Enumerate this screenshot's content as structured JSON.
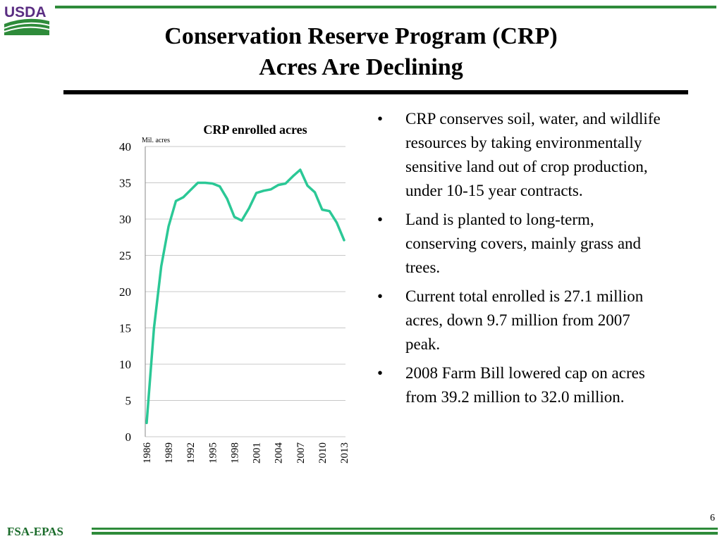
{
  "logo": {
    "text": "USDA",
    "text_color": "#5a2d82",
    "field_color": "#2e8b3a"
  },
  "title": {
    "line1": "Conservation Reserve Program (CRP)",
    "line2": "Acres Are Declining"
  },
  "bullets": [
    "CRP conserves soil, water, and wildlife resources by taking environmentally sensitive land out of crop production, under 10-15 year contracts.",
    "Land is planted to long-term, conserving covers, mainly grass and trees.",
    "Current total enrolled is 27.1 million acres, down 9.7 million from 2007 peak.",
    "2008 Farm Bill lowered cap on acres from 39.2 million to 32.0 million."
  ],
  "bullet_symbol": "•",
  "page_number": "6",
  "footer": {
    "label": "FSA-EPAS"
  },
  "colors": {
    "accent_green": "#2e8b3a",
    "footer_text": "#1a6b2a",
    "series_line": "#2bc896",
    "grid": "#c8c8c8"
  },
  "chart_data": {
    "type": "line",
    "title": "CRP enrolled acres",
    "unit_label": "Mil. acres",
    "xlabel": "",
    "ylabel": "",
    "ylim": [
      0,
      40
    ],
    "y_ticks": [
      0,
      5,
      10,
      15,
      20,
      25,
      30,
      35,
      40
    ],
    "grid": true,
    "legend": "none",
    "x_tick_labels": [
      "1986",
      "1989",
      "1992",
      "1995",
      "1998",
      "2001",
      "2004",
      "2007",
      "2010",
      "2013"
    ],
    "x": [
      1986,
      1987,
      1988,
      1989,
      1990,
      1991,
      1992,
      1993,
      1994,
      1995,
      1996,
      1997,
      1998,
      1999,
      2000,
      2001,
      2002,
      2003,
      2004,
      2005,
      2006,
      2007,
      2008,
      2009,
      2010,
      2011,
      2012,
      2013
    ],
    "series": [
      {
        "name": "CRP enrolled acres",
        "values": [
          1.9,
          15.0,
          23.5,
          29.0,
          32.5,
          33.0,
          34.0,
          35.0,
          35.0,
          34.9,
          34.5,
          32.8,
          30.3,
          29.8,
          31.5,
          33.6,
          33.9,
          34.1,
          34.7,
          34.9,
          35.9,
          36.8,
          34.6,
          33.7,
          31.3,
          31.1,
          29.5,
          27.1
        ]
      }
    ]
  }
}
